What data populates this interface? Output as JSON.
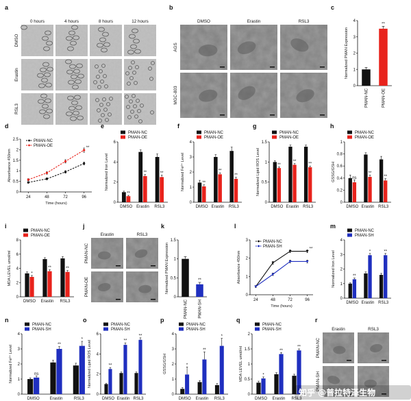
{
  "watermark": "知乎 @普拉特泽生物",
  "colors": {
    "nc": "#111111",
    "oe": "#e8231c",
    "sh": "#1f2fbf"
  },
  "chart_data": [
    {
      "label": "c",
      "type": "bar",
      "ylabel": "Normalized PMAN Expression",
      "categories": [
        "PMAN-NC",
        "PMAN-OE"
      ],
      "values": [
        1,
        3.5
      ],
      "errors": [
        0.12,
        0.15
      ],
      "colors": [
        "#111111",
        "#e8231c"
      ],
      "ylim": [
        0,
        4
      ],
      "yticks": [
        0,
        1,
        2,
        3,
        4
      ],
      "sig": [
        "",
        "**"
      ]
    },
    {
      "label": "d",
      "type": "line",
      "xlabel": "Time (hours)",
      "ylabel": "Absorbance 450nm",
      "x": [
        24,
        48,
        72,
        96
      ],
      "xlim": [
        14,
        106
      ],
      "ylim": [
        0,
        2.5
      ],
      "yticks": [
        0,
        0.5,
        1.0,
        1.5,
        2.0,
        2.5
      ],
      "sig_end": "**",
      "series": [
        {
          "name": "PMAN-NC",
          "color": "#111111",
          "values": [
            0.45,
            0.62,
            0.95,
            1.35
          ],
          "errors": [
            0.04,
            0.05,
            0.06,
            0.07
          ]
        },
        {
          "name": "PMAN-OE",
          "color": "#e8231c",
          "values": [
            0.58,
            0.9,
            1.45,
            1.98
          ],
          "errors": [
            0.05,
            0.06,
            0.08,
            0.1
          ]
        }
      ]
    },
    {
      "label": "e",
      "type": "bar",
      "ylabel": "Normalized Iron Level",
      "categories": [
        "DMSO",
        "Erastin",
        "RSL3"
      ],
      "ylim": [
        0,
        6
      ],
      "yticks": [
        0,
        2,
        4,
        6
      ],
      "series": [
        {
          "name": "PMAN-NC",
          "color": "#111111",
          "values": [
            1.0,
            5.0,
            4.5
          ],
          "errors": [
            0.1,
            0.2,
            0.3
          ]
        },
        {
          "name": "PMAN-OE",
          "color": "#e8231c",
          "values": [
            0.6,
            2.6,
            2.5
          ],
          "errors": [
            0.08,
            0.15,
            0.2
          ]
        }
      ],
      "sig": [
        "**",
        "**",
        "**"
      ]
    },
    {
      "label": "f",
      "type": "bar",
      "ylabel": "Normalized Fe²⁺ Level",
      "categories": [
        "DMSO",
        "Erastin",
        "RSL3"
      ],
      "ylim": [
        0,
        4
      ],
      "yticks": [
        0,
        1,
        2,
        3,
        4
      ],
      "series": [
        {
          "name": "PMAN-NC",
          "color": "#111111",
          "values": [
            1.3,
            3.0,
            3.4
          ],
          "errors": [
            0.15,
            0.15,
            0.25
          ]
        },
        {
          "name": "PMAN-OE",
          "color": "#e8231c",
          "values": [
            1.05,
            1.85,
            1.55
          ],
          "errors": [
            0.1,
            0.1,
            0.1
          ]
        }
      ],
      "sig": [
        "**",
        "**",
        "**"
      ]
    },
    {
      "label": "g",
      "type": "bar",
      "ylabel": "Normalized Lipid ROS Level",
      "categories": [
        "DMSO",
        "Erastin",
        "RSL3"
      ],
      "ylim": [
        0,
        1.5
      ],
      "yticks": [
        0,
        0.5,
        1.0,
        1.5
      ],
      "series": [
        {
          "name": "PMAN-NC",
          "color": "#111111",
          "values": [
            1.0,
            1.38,
            1.38
          ],
          "errors": [
            0.03,
            0.04,
            0.04
          ]
        },
        {
          "name": "PMAN-OE",
          "color": "#e8231c",
          "values": [
            0.85,
            0.93,
            0.87
          ],
          "errors": [
            0.03,
            0.03,
            0.03
          ]
        }
      ],
      "sig": [
        "**",
        "**",
        "**"
      ]
    },
    {
      "label": "h",
      "type": "bar",
      "ylabel": "GSSG/GSH",
      "categories": [
        "DMSO",
        "Erastin",
        "RSL3"
      ],
      "ylim": [
        0,
        1.0
      ],
      "yticks": [
        0,
        0.2,
        0.4,
        0.6,
        0.8,
        1.0
      ],
      "series": [
        {
          "name": "PMAN-NC",
          "color": "#111111",
          "values": [
            0.4,
            0.79,
            0.71
          ],
          "errors": [
            0.05,
            0.03,
            0.05
          ]
        },
        {
          "name": "PMAN-OE",
          "color": "#e8231c",
          "values": [
            0.33,
            0.42,
            0.36
          ],
          "errors": [
            0.04,
            0.03,
            0.03
          ]
        }
      ],
      "sig": [
        "ns",
        "**",
        "**"
      ]
    },
    {
      "label": "i",
      "type": "bar",
      "ylabel": "MDA LEVEL umol/ml",
      "categories": [
        "DMSO",
        "Erastin",
        "RSL3"
      ],
      "ylim": [
        0,
        8
      ],
      "yticks": [
        0,
        2,
        4,
        6,
        8
      ],
      "series": [
        {
          "name": "PMAN-NC",
          "color": "#111111",
          "values": [
            3.3,
            5.3,
            5.4
          ],
          "errors": [
            0.2,
            0.2,
            0.25
          ]
        },
        {
          "name": "PMAN-OE",
          "color": "#e8231c",
          "values": [
            2.8,
            3.6,
            3.5
          ],
          "errors": [
            0.2,
            0.2,
            0.2
          ]
        }
      ],
      "sig": [
        "*",
        "**",
        "**"
      ]
    },
    {
      "label": "k",
      "type": "bar",
      "ylabel": "Normalized PMAN Expression",
      "categories": [
        "PMAN-NC",
        "PMAN-SH"
      ],
      "values": [
        1.0,
        0.33
      ],
      "errors": [
        0.06,
        0.05
      ],
      "colors": [
        "#111111",
        "#1f2fbf"
      ],
      "ylim": [
        0,
        1.5
      ],
      "yticks": [
        0,
        0.5,
        1.0,
        1.5
      ],
      "sig": [
        "",
        "**"
      ]
    },
    {
      "label": "l",
      "type": "line",
      "xlabel": "Time (hours)",
      "ylabel": "Absorbance 450nm",
      "x": [
        24,
        48,
        72,
        96
      ],
      "xlim": [
        16,
        104
      ],
      "ylim": [
        0,
        3
      ],
      "yticks": [
        0,
        1,
        2,
        3
      ],
      "sig_end": "**",
      "dashed_from": 72,
      "series": [
        {
          "name": "PMAN-NC",
          "color": "#111111",
          "values": [
            0.45,
            1.75,
            2.38,
            2.38
          ],
          "errors": [
            0.05,
            0.08,
            0.08,
            0.08
          ]
        },
        {
          "name": "PMAN-SH",
          "color": "#1f2fbf",
          "values": [
            0.45,
            1.12,
            1.82,
            1.82
          ],
          "errors": [
            0.05,
            0.07,
            0.08,
            0.08
          ]
        }
      ]
    },
    {
      "label": "m",
      "type": "bar",
      "ylabel": "Normalized Iron Level",
      "categories": [
        "DMSO",
        "Erastin",
        "RSL3"
      ],
      "ylim": [
        0,
        4
      ],
      "yticks": [
        0,
        1,
        2,
        3,
        4
      ],
      "series": [
        {
          "name": "PMAN-NC",
          "color": "#111111",
          "values": [
            1.0,
            1.7,
            1.6
          ],
          "errors": [
            0.05,
            0.1,
            0.1
          ]
        },
        {
          "name": "PMAN-SH",
          "color": "#1f2fbf",
          "values": [
            1.3,
            2.95,
            2.95
          ],
          "errors": [
            0.08,
            0.12,
            0.12
          ]
        }
      ],
      "sig": [
        "**",
        "*",
        "**"
      ]
    },
    {
      "label": "n",
      "type": "bar",
      "ylabel": "Normalized Fe²⁺ Level",
      "categories": [
        "DMSO",
        "Erastin",
        "RSL3"
      ],
      "ylim": [
        0,
        4
      ],
      "yticks": [
        0,
        1,
        2,
        3,
        4
      ],
      "series": [
        {
          "name": "PMAN-NC",
          "color": "#111111",
          "values": [
            1.0,
            2.1,
            1.9
          ],
          "errors": [
            0.08,
            0.15,
            0.15
          ]
        },
        {
          "name": "PMAN-SH",
          "color": "#1f2fbf",
          "values": [
            1.1,
            3.0,
            3.2
          ],
          "errors": [
            0.1,
            0.15,
            0.3
          ]
        }
      ],
      "sig": [
        "ns",
        "**",
        "*"
      ]
    },
    {
      "label": "o",
      "type": "bar",
      "ylabel": "Normalized Lipid ROS Level",
      "categories": [
        "DMSO",
        "Erastin",
        "RSL3"
      ],
      "ylim": [
        0,
        6
      ],
      "yticks": [
        0,
        2,
        4,
        6
      ],
      "series": [
        {
          "name": "PMAN-NC",
          "color": "#111111",
          "values": [
            1.0,
            2.1,
            2.1
          ],
          "errors": [
            0.08,
            0.1,
            0.1
          ]
        },
        {
          "name": "PMAN-SH",
          "color": "#1f2fbf",
          "values": [
            2.5,
            4.9,
            5.4
          ],
          "errors": [
            0.15,
            0.2,
            0.2
          ]
        }
      ],
      "sig": [
        "**",
        "**",
        "**"
      ]
    },
    {
      "label": "p",
      "type": "bar",
      "ylabel": "GSSG/GSH",
      "categories": [
        "DMSO",
        "Erastin",
        "RSL3"
      ],
      "ylim": [
        0,
        4
      ],
      "yticks": [
        0,
        1,
        2,
        3,
        4
      ],
      "series": [
        {
          "name": "PMAN-NC",
          "color": "#111111",
          "values": [
            0.35,
            0.8,
            0.6
          ],
          "errors": [
            0.08,
            0.1,
            0.1
          ]
        },
        {
          "name": "PMAN-SH",
          "color": "#1f2fbf",
          "values": [
            1.3,
            2.3,
            3.2
          ],
          "errors": [
            0.5,
            0.5,
            0.5
          ]
        }
      ],
      "sig": [
        "*",
        "**",
        "*"
      ]
    },
    {
      "label": "q",
      "type": "bar",
      "ylabel": "MDA LEVEL umol/ml",
      "categories": [
        "DMSO",
        "Erastin",
        "RSL3"
      ],
      "ylim": [
        0,
        2.0
      ],
      "yticks": [
        0,
        0.5,
        1.0,
        1.5,
        2.0
      ],
      "series": [
        {
          "name": "PMAN-NC",
          "color": "#111111",
          "values": [
            0.38,
            0.66,
            0.61
          ],
          "errors": [
            0.05,
            0.05,
            0.05
          ]
        },
        {
          "name": "PMAN-SH",
          "color": "#1f2fbf",
          "values": [
            0.52,
            1.33,
            1.45
          ],
          "errors": [
            0.05,
            0.05,
            0.05
          ]
        }
      ],
      "sig": [
        "*",
        "**",
        "**"
      ]
    }
  ],
  "image_panels": [
    {
      "label": "a",
      "columns": [
        "0 hours",
        "4 hours",
        "8 hours",
        "12 hours"
      ],
      "rows": [
        "DMSO",
        "Erastin",
        "RSL3"
      ]
    },
    {
      "label": "b",
      "columns": [
        "DMSO",
        "Erastin",
        "RSL3"
      ],
      "rows": [
        "AGS",
        "MGC-803"
      ]
    },
    {
      "label": "j",
      "columns": [
        "Erastin",
        "RSL3"
      ],
      "rows": [
        "PMAN-NC",
        "PMAN-OE"
      ]
    },
    {
      "label": "r",
      "columns": [
        "Erastin",
        "RSL3"
      ],
      "rows": [
        "PMAN-NC",
        "PMAN-SH"
      ]
    }
  ]
}
